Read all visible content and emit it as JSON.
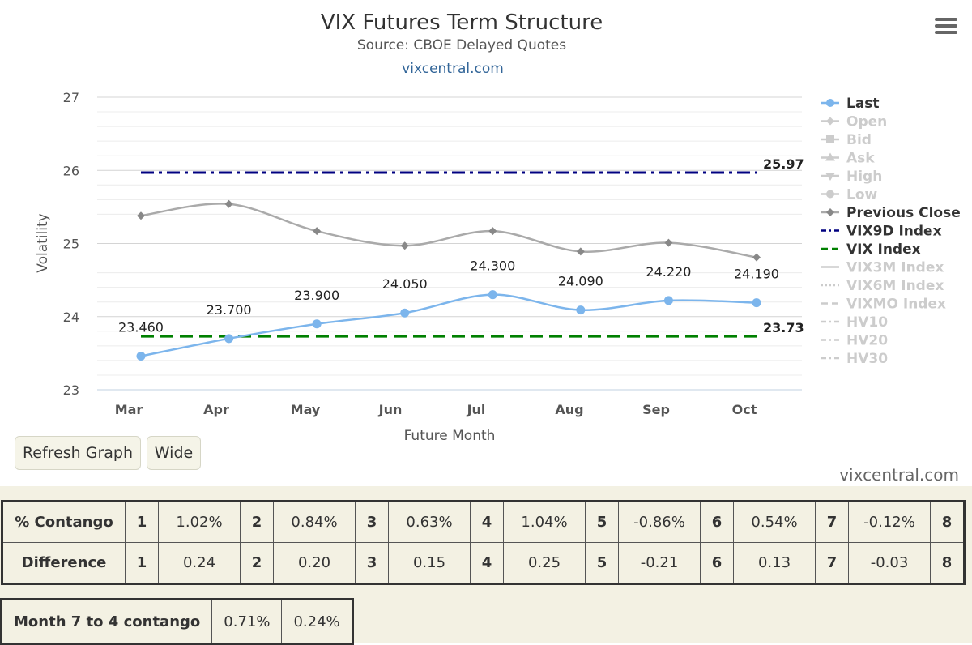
{
  "chart_data": {
    "type": "line",
    "title": "VIX Futures Term Structure",
    "subtitle": "Source: CBOE Delayed Quotes",
    "link": "vixcentral.com",
    "xlabel": "Future Month",
    "ylabel": "Volatility",
    "categories": [
      "Mar",
      "Apr",
      "May",
      "Jun",
      "Jul",
      "Aug",
      "Sep",
      "Oct"
    ],
    "ylim": [
      23,
      27
    ],
    "yticks": [
      23,
      24,
      25,
      26,
      27
    ],
    "grid": true,
    "legend_position": "right",
    "series": [
      {
        "name": "Last",
        "values": [
          23.46,
          23.7,
          23.9,
          24.05,
          24.3,
          24.09,
          24.22,
          24.19
        ],
        "labels": [
          "23.460",
          "23.700",
          "23.900",
          "24.050",
          "24.300",
          "24.090",
          "24.220",
          "24.190"
        ],
        "color": "#7cb5ec",
        "style": "solid",
        "marker": "circle",
        "visible": true
      },
      {
        "name": "Open",
        "visible": false,
        "style": "solid",
        "marker": "diamond"
      },
      {
        "name": "Bid",
        "visible": false,
        "style": "solid",
        "marker": "square"
      },
      {
        "name": "Ask",
        "visible": false,
        "style": "solid",
        "marker": "triangle"
      },
      {
        "name": "High",
        "visible": false,
        "style": "solid",
        "marker": "triangle-down"
      },
      {
        "name": "Low",
        "visible": false,
        "style": "solid",
        "marker": "circle"
      },
      {
        "name": "Previous Close",
        "values": [
          25.38,
          25.54,
          25.17,
          24.97,
          25.17,
          24.89,
          25.01,
          24.81
        ],
        "color": "#aaaaaa",
        "style": "solid",
        "marker": "diamond",
        "visible": true
      },
      {
        "name": "VIX9D Index",
        "values": [
          25.97,
          25.97,
          25.97,
          25.97,
          25.97,
          25.97,
          25.97,
          25.97
        ],
        "end_label": "25.97",
        "color": "#000080",
        "style": "dashdot",
        "visible": true
      },
      {
        "name": "VIX Index",
        "values": [
          23.73,
          23.73,
          23.73,
          23.73,
          23.73,
          23.73,
          23.73,
          23.73
        ],
        "end_label": "23.73",
        "color": "#008000",
        "style": "dash",
        "visible": true
      },
      {
        "name": "VIX3M Index",
        "visible": false,
        "style": "solid"
      },
      {
        "name": "VIX6M Index",
        "visible": false,
        "style": "dot"
      },
      {
        "name": "VIXMO Index",
        "visible": false,
        "style": "dash"
      },
      {
        "name": "HV10",
        "visible": false,
        "style": "dashdot"
      },
      {
        "name": "HV20",
        "visible": false,
        "style": "dashdot"
      },
      {
        "name": "HV30",
        "visible": false,
        "style": "dashdot"
      }
    ]
  },
  "buttons": {
    "refresh": "Refresh Graph",
    "wide": "Wide"
  },
  "credit": "vixcentral.com",
  "contango_table": {
    "rows": [
      {
        "label": "% Contango",
        "cells": [
          [
            "1",
            "1.02%"
          ],
          [
            "2",
            "0.84%"
          ],
          [
            "3",
            "0.63%"
          ],
          [
            "4",
            "1.04%"
          ],
          [
            "5",
            "-0.86%"
          ],
          [
            "6",
            "0.54%"
          ],
          [
            "7",
            "-0.12%"
          ],
          [
            "8",
            ""
          ]
        ]
      },
      {
        "label": "Difference",
        "cells": [
          [
            "1",
            "0.24"
          ],
          [
            "2",
            "0.20"
          ],
          [
            "3",
            "0.15"
          ],
          [
            "4",
            "0.25"
          ],
          [
            "5",
            "-0.21"
          ],
          [
            "6",
            "0.13"
          ],
          [
            "7",
            "-0.03"
          ],
          [
            "8",
            ""
          ]
        ]
      }
    ]
  },
  "summary": {
    "label": "Month 7 to 4 contango",
    "value1": "0.71%",
    "value2": "0.24%"
  }
}
